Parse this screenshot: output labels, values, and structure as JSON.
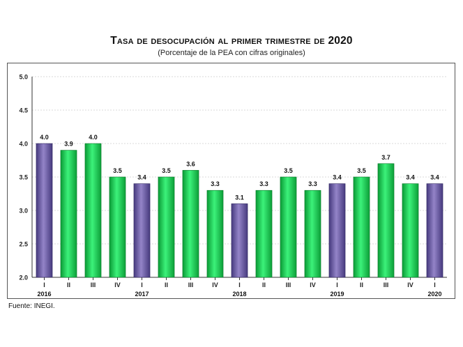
{
  "chart_data": {
    "type": "bar",
    "title": "Tasa de desocupación al primer trimestre de 2020",
    "subtitle": "(Porcentaje de la PEA con cifras originales)",
    "quarters": [
      "I",
      "II",
      "III",
      "IV",
      "I",
      "II",
      "III",
      "IV",
      "I",
      "II",
      "III",
      "IV",
      "I",
      "II",
      "III",
      "IV",
      "I"
    ],
    "years": [
      "2016",
      "",
      "",
      "",
      "2017",
      "",
      "",
      "",
      "2018",
      "",
      "",
      "",
      "2019",
      "",
      "",
      "",
      "2020"
    ],
    "values": [
      4.0,
      3.9,
      4.0,
      3.5,
      3.4,
      3.5,
      3.6,
      3.3,
      3.1,
      3.3,
      3.5,
      3.3,
      3.4,
      3.5,
      3.7,
      3.4,
      3.4
    ],
    "value_labels": [
      "4.0",
      "3.9",
      "4.0",
      "3.5",
      "3.4",
      "3.5",
      "3.6",
      "3.3",
      "3.1",
      "3.3",
      "3.5",
      "3.3",
      "3.4",
      "3.5",
      "3.7",
      "3.4",
      "3.4"
    ],
    "highlight": [
      true,
      false,
      false,
      false,
      true,
      false,
      false,
      false,
      true,
      false,
      false,
      false,
      true,
      false,
      false,
      false,
      true
    ],
    "ylim": [
      2.0,
      5.0
    ],
    "yticks": [
      "2.0",
      "2.5",
      "3.0",
      "3.5",
      "4.0",
      "4.5",
      "5.0"
    ],
    "grid": true,
    "colors": {
      "highlight": "#6a5a9e",
      "regular": "#22d65a"
    }
  },
  "footer": {
    "source": "Fuente: INEGI."
  }
}
